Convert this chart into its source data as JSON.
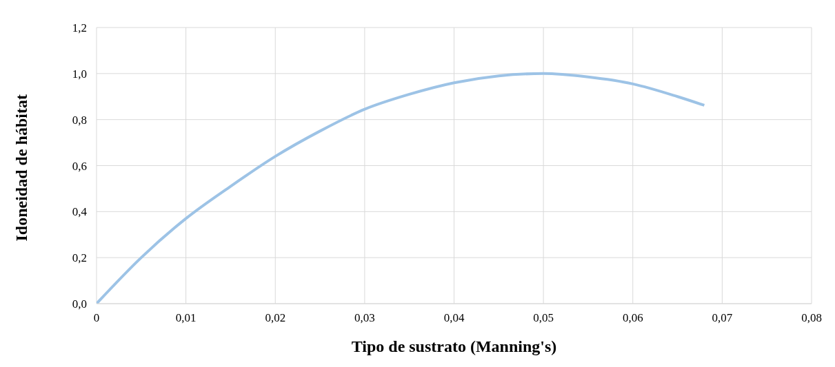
{
  "chart_data": {
    "type": "line",
    "xlabel": "Tipo de sustrato (Manning's)",
    "ylabel": "Idoneidad de hábitat",
    "x": [
      0,
      0.005,
      0.01,
      0.015,
      0.02,
      0.025,
      0.03,
      0.035,
      0.04,
      0.045,
      0.05,
      0.055,
      0.06,
      0.065,
      0.068
    ],
    "series": [
      {
        "color": "#9dc3e6",
        "values": [
          0,
          0.2,
          0.37,
          0.51,
          0.64,
          0.75,
          0.845,
          0.91,
          0.96,
          0.99,
          1.0,
          0.985,
          0.955,
          0.9,
          0.862
        ]
      }
    ],
    "xlim": [
      0,
      0.08
    ],
    "xticks": [
      0,
      {
        "value": 0.01,
        "label": "0,01"
      },
      {
        "value": 0.02,
        "label": "0,02"
      },
      {
        "value": 0.03,
        "label": "0,03"
      },
      {
        "value": 0.04,
        "label": "0,04"
      },
      {
        "value": 0.05,
        "label": "0,05"
      },
      {
        "value": 0.06,
        "label": "0,06"
      },
      {
        "value": 0.07,
        "label": "0,07"
      },
      {
        "value": 0.08,
        "label": "0,08"
      }
    ],
    "ylim": [
      0,
      1.2
    ],
    "yticks": [
      {
        "value": 0,
        "label": "0,0"
      },
      {
        "value": 0.2,
        "label": "0,2"
      },
      {
        "value": 0.4,
        "label": "0,4"
      },
      {
        "value": 0.6,
        "label": "0,6"
      },
      {
        "value": 0.8,
        "label": "0,8"
      },
      {
        "value": 1.0,
        "label": "1,0"
      },
      {
        "value": 1.2,
        "label": "1,2"
      }
    ],
    "grid": true,
    "marker": "none",
    "line_style": "solid",
    "legend": false
  }
}
